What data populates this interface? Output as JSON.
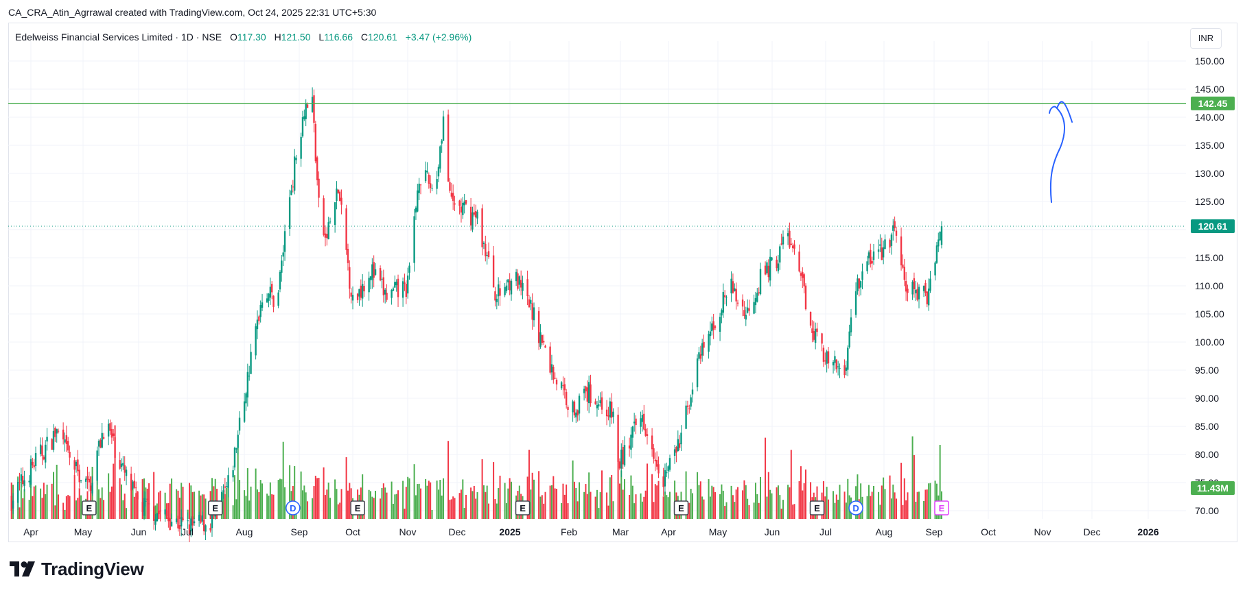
{
  "caption": "CA_CRA_Atin_Agrrawal created with TradingView.com, Oct 24, 2025 22:31 UTC+5:30",
  "legend": {
    "symbol": "Edelweiss Financial Services Limited · 1D · NSE",
    "o_label": "O",
    "o": "117.30",
    "h_label": "H",
    "h": "121.50",
    "l_label": "L",
    "l": "116.66",
    "c_label": "C",
    "c": "120.61",
    "change": "+3.47 (+2.96%)"
  },
  "currency": "INR",
  "brand": "TradingView",
  "colors": {
    "up": "#089981",
    "down": "#f23645",
    "volume_up": "#4caf50",
    "volume_down": "#f23645",
    "resistance": "#4caf50",
    "drawing": "#2962ff",
    "price_tag": "#089981"
  },
  "chart_data": {
    "type": "candlestick",
    "ylim": [
      67.5,
      152
    ],
    "y_ticks": [
      "150.00",
      "145.00",
      "140.00",
      "135.00",
      "130.00",
      "125.00",
      "120.00",
      "115.00",
      "110.00",
      "105.00",
      "100.00",
      "95.00",
      "90.00",
      "85.00",
      "80.00",
      "75.00",
      "70.00"
    ],
    "x_ticks": [
      "Apr",
      "May",
      "Jun",
      "Jul",
      "Aug",
      "Sep",
      "Oct",
      "Nov",
      "Dec",
      "2025",
      "Feb",
      "Mar",
      "Apr",
      "May",
      "Jun",
      "Jul",
      "Aug",
      "Sep",
      "Oct",
      "Nov",
      "Dec",
      "2026"
    ],
    "close_path": [
      [
        "2024-03-28",
        72
      ],
      [
        "2024-04-10",
        78
      ],
      [
        "2024-04-25",
        84
      ],
      [
        "2024-05-05",
        78
      ],
      [
        "2024-05-15",
        74
      ],
      [
        "2024-05-25",
        86
      ],
      [
        "2024-06-05",
        77
      ],
      [
        "2024-06-15",
        71
      ],
      [
        "2024-07-01",
        69
      ],
      [
        "2024-07-15",
        67
      ],
      [
        "2024-07-29",
        68
      ],
      [
        "2024-08-10",
        75
      ],
      [
        "2024-08-20",
        92
      ],
      [
        "2024-08-31",
        110
      ],
      [
        "2024-09-08",
        107
      ],
      [
        "2024-09-16",
        126
      ],
      [
        "2024-09-25",
        142
      ],
      [
        "2024-09-30",
        143
      ],
      [
        "2024-10-04",
        124
      ],
      [
        "2024-10-08",
        118
      ],
      [
        "2024-10-16",
        127
      ],
      [
        "2024-10-25",
        107
      ],
      [
        "2024-11-05",
        113
      ],
      [
        "2024-11-15",
        108
      ],
      [
        "2024-11-28",
        110
      ],
      [
        "2024-12-05",
        130
      ],
      [
        "2024-12-15",
        127
      ],
      [
        "2024-12-20",
        140
      ],
      [
        "2024-12-24",
        125
      ],
      [
        "2025-01-10",
        122
      ],
      [
        "2025-01-22",
        108
      ],
      [
        "2025-02-01",
        112
      ],
      [
        "2025-02-12",
        106
      ],
      [
        "2025-02-25",
        95
      ],
      [
        "2025-03-10",
        88
      ],
      [
        "2025-03-20",
        91
      ],
      [
        "2025-04-04",
        87
      ],
      [
        "2025-04-07",
        78
      ],
      [
        "2025-04-22",
        87
      ],
      [
        "2025-05-05",
        76
      ],
      [
        "2025-05-15",
        82
      ],
      [
        "2025-05-25",
        95
      ],
      [
        "2025-06-05",
        103
      ],
      [
        "2025-06-15",
        110
      ],
      [
        "2025-06-25",
        105
      ],
      [
        "2025-07-05",
        112
      ],
      [
        "2025-07-15",
        115
      ],
      [
        "2025-07-20",
        120
      ],
      [
        "2025-07-28",
        112
      ],
      [
        "2025-08-05",
        103
      ],
      [
        "2025-08-15",
        96
      ],
      [
        "2025-08-25",
        95
      ],
      [
        "2025-09-01",
        110
      ],
      [
        "2025-09-10",
        115
      ],
      [
        "2025-09-22",
        117
      ],
      [
        "2025-09-25",
        121
      ],
      [
        "2025-10-01",
        110
      ],
      [
        "2025-10-15",
        108
      ],
      [
        "2025-10-20",
        116
      ],
      [
        "2025-10-24",
        120.61
      ]
    ],
    "volume_max": "11.43M",
    "horizontal_lines": [
      {
        "price": 142.45,
        "label": "142.45"
      }
    ],
    "last_price": {
      "price": 120.61,
      "label": "120.61"
    },
    "volume_tag": "11.43M",
    "events": [
      {
        "date": "2024-05-15",
        "letter": "E"
      },
      {
        "date": "2024-08-01",
        "letter": "E"
      },
      {
        "date": "2024-09-18",
        "letter": "D"
      },
      {
        "date": "2024-10-28",
        "letter": "E"
      },
      {
        "date": "2025-02-07",
        "letter": "E"
      },
      {
        "date": "2025-05-16",
        "letter": "E"
      },
      {
        "date": "2025-08-08",
        "letter": "E"
      },
      {
        "date": "2025-09-01",
        "letter": "D"
      },
      {
        "date": "2025-10-24",
        "letter": "E"
      }
    ]
  }
}
